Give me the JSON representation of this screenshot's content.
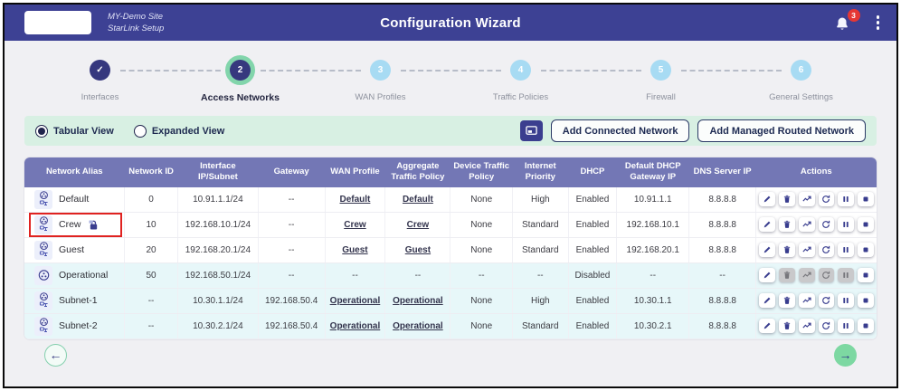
{
  "header": {
    "site_line1": "MY-Demo Site",
    "site_line2": "StarLink Setup",
    "title": "Configuration Wizard",
    "notification_count": "3"
  },
  "stepper": {
    "steps": [
      {
        "num": "1",
        "label": "Interfaces",
        "state": "done"
      },
      {
        "num": "2",
        "label": "Access Networks",
        "state": "active"
      },
      {
        "num": "3",
        "label": "WAN Profiles",
        "state": "todo"
      },
      {
        "num": "4",
        "label": "Traffic Policies",
        "state": "todo"
      },
      {
        "num": "5",
        "label": "Firewall",
        "state": "todo"
      },
      {
        "num": "6",
        "label": "General Settings",
        "state": "todo"
      }
    ]
  },
  "toolbar": {
    "view_options": [
      {
        "label": "Tabular View",
        "selected": true
      },
      {
        "label": "Expanded View",
        "selected": false
      }
    ],
    "display_button_icon": "display-icon",
    "add_connected_label": "Add Connected Network",
    "add_managed_label": "Add Managed Routed Network"
  },
  "table": {
    "columns": [
      "Network Alias",
      "Network ID",
      "Interface IP/Subnet",
      "Gateway",
      "WAN Profile",
      "Aggregate Traffic Policy",
      "Device Traffic Policy",
      "Internet Priority",
      "DHCP",
      "Default DHCP Gateway IP",
      "DNS Server IP",
      "Actions"
    ],
    "action_icons": [
      "edit",
      "delete",
      "activity",
      "restart",
      "pause",
      "stop"
    ],
    "rows": [
      {
        "alias": "Default",
        "alias_icon": "network-double",
        "locked": false,
        "highlighted": false,
        "tinted": false,
        "network_id": "0",
        "interface_ip": "10.91.1.1/24",
        "gateway": "--",
        "wan_profile": "Default",
        "aggregate_policy": "Default",
        "device_policy": "None",
        "internet_priority": "High",
        "dhcp": "Enabled",
        "dhcp_gateway": "10.91.1.1",
        "dns": "8.8.8.8",
        "disabled_actions": []
      },
      {
        "alias": "Crew",
        "alias_icon": "network-double",
        "locked": true,
        "highlighted": true,
        "tinted": false,
        "network_id": "10",
        "interface_ip": "192.168.10.1/24",
        "gateway": "--",
        "wan_profile": "Crew",
        "aggregate_policy": "Crew",
        "device_policy": "None",
        "internet_priority": "Standard",
        "dhcp": "Enabled",
        "dhcp_gateway": "192.168.10.1",
        "dns": "8.8.8.8",
        "disabled_actions": []
      },
      {
        "alias": "Guest",
        "alias_icon": "network-double",
        "locked": false,
        "highlighted": false,
        "tinted": false,
        "network_id": "20",
        "interface_ip": "192.168.20.1/24",
        "gateway": "--",
        "wan_profile": "Guest",
        "aggregate_policy": "Guest",
        "device_policy": "None",
        "internet_priority": "Standard",
        "dhcp": "Enabled",
        "dhcp_gateway": "192.168.20.1",
        "dns": "8.8.8.8",
        "disabled_actions": []
      },
      {
        "alias": "Operational",
        "alias_icon": "network-single",
        "locked": false,
        "highlighted": false,
        "tinted": true,
        "network_id": "50",
        "interface_ip": "192.168.50.1/24",
        "gateway": "--",
        "wan_profile": "--",
        "aggregate_policy": "--",
        "device_policy": "--",
        "internet_priority": "--",
        "dhcp": "Disabled",
        "dhcp_gateway": "--",
        "dns": "--",
        "disabled_actions": [
          "delete",
          "activity",
          "restart",
          "pause"
        ]
      },
      {
        "alias": "Subnet-1",
        "alias_icon": "network-double",
        "locked": false,
        "highlighted": false,
        "tinted": true,
        "network_id": "--",
        "interface_ip": "10.30.1.1/24",
        "gateway": "192.168.50.4",
        "wan_profile": "Operational",
        "aggregate_policy": "Operational",
        "device_policy": "None",
        "internet_priority": "High",
        "dhcp": "Enabled",
        "dhcp_gateway": "10.30.1.1",
        "dns": "8.8.8.8",
        "disabled_actions": []
      },
      {
        "alias": "Subnet-2",
        "alias_icon": "network-double",
        "locked": false,
        "highlighted": false,
        "tinted": true,
        "network_id": "--",
        "interface_ip": "10.30.2.1/24",
        "gateway": "192.168.50.4",
        "wan_profile": "Operational",
        "aggregate_policy": "Operational",
        "device_policy": "None",
        "internet_priority": "Standard",
        "dhcp": "Enabled",
        "dhcp_gateway": "10.30.2.1",
        "dns": "8.8.8.8",
        "disabled_actions": []
      }
    ]
  },
  "footer": {
    "back_icon": "arrow-left-icon",
    "next_icon": "arrow-right-icon"
  },
  "colors": {
    "header_bg": "#3d4194",
    "active_ring": "#82d5ab",
    "todo_step": "#a7dbf3",
    "strip_bg": "#d8f0e3",
    "table_header_bg": "#7377b5",
    "row_tint": "#e7f7f9",
    "badge_red": "#e53734",
    "highlight_red": "#e02220",
    "accent_indigo": "#3b3e8f",
    "next_green": "#7dd8a2"
  }
}
